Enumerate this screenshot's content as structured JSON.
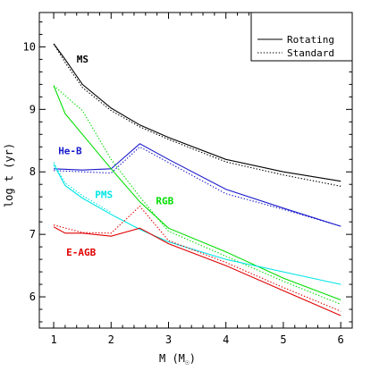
{
  "chart_data": {
    "type": "line",
    "xlabel": "M (M",
    "xlabel_suffix": ")",
    "ylabel": "log t (yr)",
    "xlim": [
      0.75,
      6.2
    ],
    "ylim": [
      5.5,
      10.55
    ],
    "xticks": [
      1,
      2,
      3,
      4,
      5,
      6
    ],
    "yticks": [
      6,
      7,
      8,
      9,
      10
    ],
    "grid": false,
    "legend": {
      "placement": "top-right",
      "entries": [
        {
          "label": "Rotating",
          "style": "solid"
        },
        {
          "label": "Standard",
          "style": "dotted"
        }
      ]
    },
    "series": [
      {
        "name": "MS",
        "color": "#000000",
        "label_pos": [
          1.4,
          9.75
        ],
        "rotating": {
          "x": [
            1,
            1.2,
            1.5,
            2,
            2.5,
            3,
            4,
            5,
            6
          ],
          "y": [
            10.05,
            9.8,
            9.4,
            9.02,
            8.75,
            8.55,
            8.2,
            8.0,
            7.85
          ]
        },
        "standard": {
          "x": [
            1,
            1.2,
            1.5,
            2,
            2.5,
            3,
            4,
            5,
            6
          ],
          "y": [
            10.05,
            9.75,
            9.35,
            8.98,
            8.72,
            8.52,
            8.16,
            7.95,
            7.77
          ]
        }
      },
      {
        "name": "He-B",
        "color": "#1a1acc",
        "label_pos": [
          1.08,
          8.28
        ],
        "rotating": {
          "x": [
            1,
            1.5,
            2,
            2.5,
            3,
            4,
            5,
            6
          ],
          "y": [
            8.05,
            8.03,
            8.05,
            8.45,
            8.2,
            7.72,
            7.42,
            7.13
          ]
        },
        "standard": {
          "x": [
            1,
            1.5,
            2,
            2.5,
            3,
            4,
            5,
            6
          ],
          "y": [
            8.02,
            8.0,
            7.98,
            8.4,
            8.15,
            7.65,
            7.4,
            7.13
          ]
        }
      },
      {
        "name": "RGB",
        "color": "#00dd00",
        "label_pos": [
          2.78,
          7.48
        ],
        "rotating": {
          "x": [
            1,
            1.2,
            1.5,
            2,
            2.5,
            3,
            4,
            5,
            6
          ],
          "y": [
            9.38,
            8.93,
            8.6,
            8.05,
            7.52,
            7.1,
            6.72,
            6.3,
            5.95
          ]
        },
        "standard": {
          "x": [
            1,
            1.5,
            2,
            2.5,
            3,
            4,
            5,
            6
          ],
          "y": [
            9.38,
            8.98,
            8.2,
            7.6,
            7.05,
            6.65,
            6.25,
            5.88
          ]
        }
      },
      {
        "name": "PMS",
        "color": "#00e5e5",
        "label_pos": [
          1.72,
          7.58
        ],
        "rotating": {
          "x": [
            1,
            1.2,
            1.5,
            2,
            2.5,
            3,
            4,
            5,
            6
          ],
          "y": [
            8.12,
            7.78,
            7.58,
            7.32,
            7.08,
            6.88,
            6.6,
            6.4,
            6.2
          ]
        },
        "standard": {
          "x": [
            1,
            1.2,
            1.5,
            2
          ],
          "y": [
            8.15,
            7.82,
            7.62,
            7.35
          ]
        }
      },
      {
        "name": "E-AGB",
        "color": "#e00000",
        "label_pos": [
          1.22,
          6.66
        ],
        "rotating": {
          "x": [
            1,
            1.2,
            1.5,
            2,
            2.5,
            3,
            4,
            5,
            6
          ],
          "y": [
            7.12,
            7.02,
            7.02,
            6.97,
            7.1,
            6.85,
            6.5,
            6.1,
            5.7
          ]
        },
        "standard": {
          "x": [
            1,
            1.5,
            2,
            2.5,
            3,
            4,
            5,
            6
          ],
          "y": [
            7.15,
            7.03,
            7.02,
            7.45,
            6.9,
            6.55,
            6.15,
            5.77
          ]
        }
      }
    ]
  }
}
